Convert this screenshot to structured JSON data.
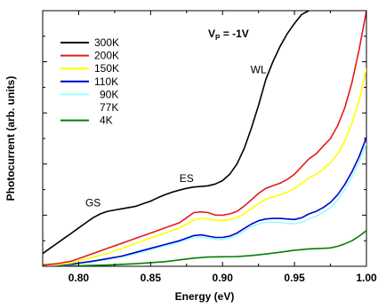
{
  "chart_data": {
    "type": "line",
    "title": "",
    "xlabel": "Energy (eV)",
    "ylabel": "Photocurrent  (arb. units)",
    "xlim": [
      0.775,
      1.0
    ],
    "ylim": [
      0,
      1
    ],
    "x_ticks": [
      0.8,
      0.85,
      0.9,
      0.95,
      1.0
    ],
    "x_tick_labels": [
      "0.80",
      "0.85",
      "0.90",
      "0.95",
      "1.00"
    ],
    "y_tick_labels": false,
    "legend_placement": "top-left",
    "annotations": [
      {
        "id": "vp",
        "text_main": "V",
        "text_sub": "P",
        "text_rest": " = -1V",
        "x": 0.89,
        "y": 0.895
      },
      {
        "id": "wl",
        "text": "WL",
        "x": 0.925,
        "y": 0.755
      },
      {
        "id": "es",
        "text": "ES",
        "x": 0.875,
        "y": 0.33
      },
      {
        "id": "gs",
        "text": "GS",
        "x": 0.81,
        "y": 0.235
      }
    ],
    "series": [
      {
        "name": "300K",
        "color": "#000000",
        "x": [
          0.775,
          0.78,
          0.785,
          0.79,
          0.795,
          0.8,
          0.805,
          0.81,
          0.815,
          0.82,
          0.825,
          0.83,
          0.835,
          0.84,
          0.845,
          0.85,
          0.855,
          0.86,
          0.865,
          0.87,
          0.875,
          0.88,
          0.885,
          0.89,
          0.895,
          0.9,
          0.905,
          0.91,
          0.915,
          0.92,
          0.925,
          0.93,
          0.935,
          0.94,
          0.945,
          0.95,
          0.955,
          0.96
        ],
        "y": [
          0.05,
          0.07,
          0.09,
          0.11,
          0.13,
          0.15,
          0.17,
          0.19,
          0.205,
          0.215,
          0.22,
          0.225,
          0.23,
          0.235,
          0.245,
          0.255,
          0.268,
          0.28,
          0.29,
          0.298,
          0.305,
          0.31,
          0.312,
          0.315,
          0.322,
          0.335,
          0.36,
          0.4,
          0.46,
          0.54,
          0.63,
          0.73,
          0.8,
          0.86,
          0.91,
          0.95,
          0.985,
          1.0
        ]
      },
      {
        "name": "200K",
        "color": "#e31a1c",
        "x": [
          0.775,
          0.785,
          0.795,
          0.8,
          0.81,
          0.82,
          0.83,
          0.84,
          0.85,
          0.86,
          0.87,
          0.875,
          0.88,
          0.885,
          0.89,
          0.895,
          0.9,
          0.905,
          0.91,
          0.915,
          0.92,
          0.925,
          0.93,
          0.935,
          0.94,
          0.945,
          0.95,
          0.955,
          0.96,
          0.965,
          0.97,
          0.975,
          0.98,
          0.985,
          0.99,
          0.995,
          1.0
        ],
        "y": [
          0.005,
          0.01,
          0.02,
          0.03,
          0.05,
          0.07,
          0.09,
          0.11,
          0.13,
          0.15,
          0.17,
          0.19,
          0.21,
          0.213,
          0.21,
          0.2,
          0.2,
          0.205,
          0.215,
          0.235,
          0.26,
          0.285,
          0.305,
          0.315,
          0.325,
          0.34,
          0.36,
          0.39,
          0.42,
          0.44,
          0.47,
          0.5,
          0.55,
          0.62,
          0.72,
          0.85,
          1.0
        ]
      },
      {
        "name": "150K",
        "color": "#ffff00",
        "x": [
          0.775,
          0.785,
          0.795,
          0.8,
          0.81,
          0.82,
          0.83,
          0.84,
          0.85,
          0.86,
          0.87,
          0.875,
          0.88,
          0.885,
          0.89,
          0.895,
          0.9,
          0.905,
          0.91,
          0.915,
          0.92,
          0.925,
          0.93,
          0.935,
          0.94,
          0.945,
          0.95,
          0.955,
          0.96,
          0.965,
          0.97,
          0.975,
          0.98,
          0.985,
          0.99,
          0.995,
          1.0
        ],
        "y": [
          0.003,
          0.006,
          0.012,
          0.02,
          0.035,
          0.05,
          0.07,
          0.09,
          0.11,
          0.13,
          0.15,
          0.165,
          0.18,
          0.188,
          0.185,
          0.18,
          0.18,
          0.183,
          0.19,
          0.205,
          0.225,
          0.245,
          0.262,
          0.272,
          0.28,
          0.29,
          0.305,
          0.325,
          0.345,
          0.36,
          0.38,
          0.405,
          0.44,
          0.49,
          0.56,
          0.65,
          0.775
        ]
      },
      {
        "name": "110K",
        "color": "#0000cc",
        "x": [
          0.775,
          0.785,
          0.795,
          0.8,
          0.81,
          0.82,
          0.83,
          0.84,
          0.85,
          0.86,
          0.87,
          0.875,
          0.88,
          0.885,
          0.89,
          0.895,
          0.9,
          0.905,
          0.91,
          0.915,
          0.92,
          0.925,
          0.93,
          0.935,
          0.94,
          0.945,
          0.95,
          0.955,
          0.96,
          0.965,
          0.97,
          0.975,
          0.98,
          0.985,
          0.99,
          0.995,
          1.0
        ],
        "y": [
          0.002,
          0.004,
          0.008,
          0.012,
          0.02,
          0.03,
          0.04,
          0.055,
          0.07,
          0.085,
          0.1,
          0.11,
          0.12,
          0.123,
          0.118,
          0.113,
          0.113,
          0.118,
          0.13,
          0.148,
          0.165,
          0.178,
          0.185,
          0.187,
          0.187,
          0.185,
          0.183,
          0.19,
          0.205,
          0.215,
          0.23,
          0.25,
          0.28,
          0.32,
          0.37,
          0.43,
          0.505
        ]
      },
      {
        "name": "90K",
        "color": "#99ffff",
        "x": [
          0.775,
          0.785,
          0.795,
          0.8,
          0.81,
          0.82,
          0.83,
          0.84,
          0.85,
          0.86,
          0.87,
          0.875,
          0.88,
          0.885,
          0.89,
          0.895,
          0.9,
          0.905,
          0.91,
          0.915,
          0.92,
          0.925,
          0.93,
          0.935,
          0.94,
          0.945,
          0.95,
          0.955,
          0.96,
          0.965,
          0.97,
          0.975,
          0.98,
          0.985,
          0.99,
          0.995,
          1.0
        ],
        "y": [
          0.002,
          0.004,
          0.007,
          0.011,
          0.018,
          0.027,
          0.037,
          0.05,
          0.065,
          0.08,
          0.095,
          0.105,
          0.113,
          0.115,
          0.11,
          0.105,
          0.105,
          0.11,
          0.12,
          0.138,
          0.155,
          0.166,
          0.172,
          0.173,
          0.172,
          0.168,
          0.166,
          0.172,
          0.185,
          0.195,
          0.21,
          0.23,
          0.26,
          0.3,
          0.35,
          0.41,
          0.48
        ]
      },
      {
        "name": "77K",
        "color": "#ffffff",
        "x": [
          0.775,
          1.0
        ],
        "y": [
          0,
          0
        ]
      },
      {
        "name": "4K",
        "color": "#008000",
        "x": [
          0.775,
          0.8,
          0.82,
          0.84,
          0.86,
          0.87,
          0.88,
          0.89,
          0.9,
          0.91,
          0.92,
          0.93,
          0.94,
          0.95,
          0.96,
          0.97,
          0.975,
          0.98,
          0.985,
          0.99,
          0.995,
          1.0
        ],
        "y": [
          0.0,
          0.002,
          0.005,
          0.01,
          0.018,
          0.025,
          0.032,
          0.036,
          0.037,
          0.038,
          0.042,
          0.048,
          0.055,
          0.063,
          0.068,
          0.07,
          0.072,
          0.078,
          0.088,
          0.1,
          0.118,
          0.14
        ]
      }
    ]
  }
}
